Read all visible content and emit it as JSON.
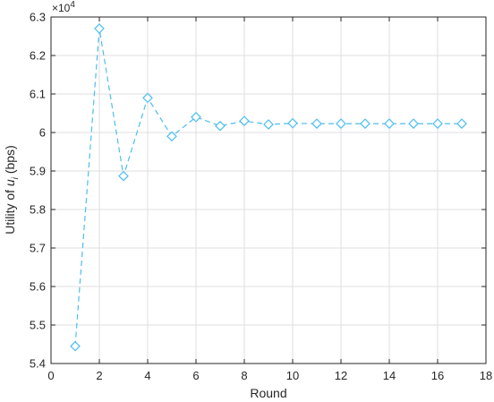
{
  "chart_data": {
    "type": "line",
    "xlabel": "Round",
    "ylabel_prefix": "Utility of ",
    "ylabel_var": "u",
    "ylabel_sub": "i",
    "ylabel_suffix": " (bps)",
    "y_multiplier_base": "×10",
    "y_multiplier_exp": "4",
    "xlim": [
      0,
      18
    ],
    "ylim": [
      5.4,
      6.3
    ],
    "grid": true,
    "x_ticks": [
      0,
      2,
      4,
      6,
      8,
      10,
      12,
      14,
      16,
      18
    ],
    "y_ticks": [
      5.4,
      5.5,
      5.6,
      5.7,
      5.8,
      5.9,
      6,
      6.1,
      6.2,
      6.3
    ],
    "x_tick_labels": [
      "0",
      "2",
      "4",
      "6",
      "8",
      "10",
      "12",
      "14",
      "16",
      "18"
    ],
    "y_tick_labels": [
      "5.4",
      "5.5",
      "5.6",
      "5.7",
      "5.8",
      "5.9",
      "6",
      "6.1",
      "6.2",
      "6.3"
    ],
    "series": [
      {
        "color": "#4dbeee",
        "line_style": "dashed",
        "marker": "diamond",
        "x": [
          1,
          2,
          3,
          4,
          5,
          6,
          7,
          8,
          9,
          10,
          11,
          12,
          13,
          14,
          15,
          16,
          17
        ],
        "values": [
          5.445,
          6.27,
          5.887,
          6.09,
          5.99,
          6.04,
          6.017,
          6.03,
          6.021,
          6.024,
          6.023,
          6.023,
          6.023,
          6.023,
          6.023,
          6.023,
          6.023
        ]
      }
    ]
  }
}
